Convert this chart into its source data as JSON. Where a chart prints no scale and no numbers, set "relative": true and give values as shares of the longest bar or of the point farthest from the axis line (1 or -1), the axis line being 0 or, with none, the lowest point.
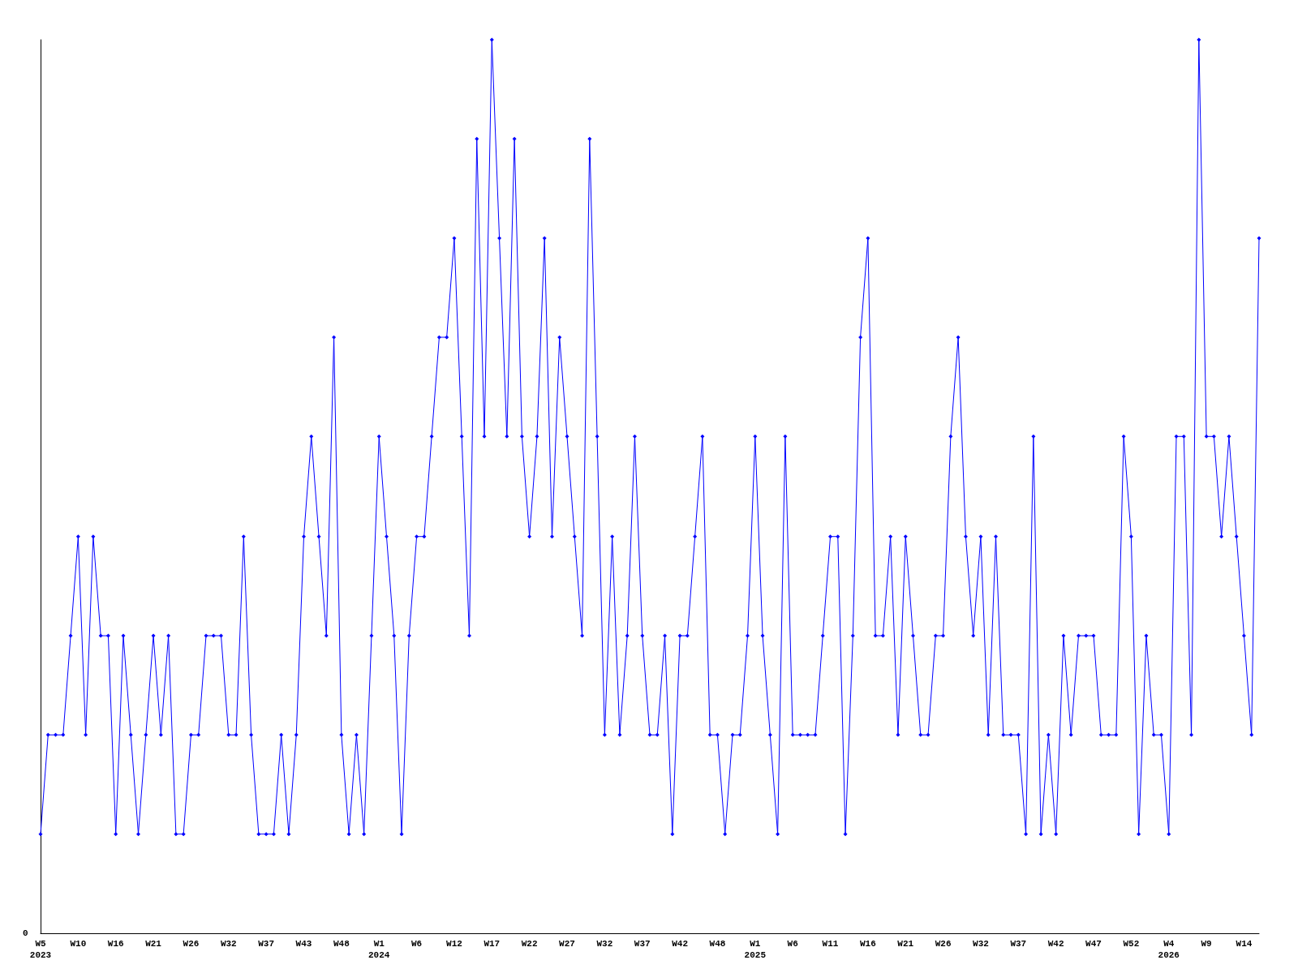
{
  "chart_data": {
    "type": "line",
    "relative": true,
    "color": "#0000ff",
    "marker": "diamond",
    "line_style": "solid",
    "grid": false,
    "annotations": [
      "0"
    ],
    "categories": [
      "W5\n2023",
      null,
      null,
      null,
      null,
      "W10",
      null,
      null,
      null,
      null,
      "W16",
      null,
      null,
      null,
      null,
      "W21",
      null,
      null,
      null,
      null,
      "W26",
      null,
      null,
      null,
      null,
      "W32",
      null,
      null,
      null,
      null,
      "W37",
      null,
      null,
      null,
      null,
      "W43",
      null,
      null,
      null,
      null,
      "W48",
      null,
      null,
      null,
      null,
      "W1\n2024",
      null,
      null,
      null,
      null,
      "W6",
      null,
      null,
      null,
      null,
      "W12",
      null,
      null,
      null,
      null,
      "W17",
      null,
      null,
      null,
      null,
      "W22",
      null,
      null,
      null,
      null,
      "W27",
      null,
      null,
      null,
      null,
      "W32",
      null,
      null,
      null,
      null,
      "W37",
      null,
      null,
      null,
      null,
      "W42",
      null,
      null,
      null,
      null,
      "W48",
      null,
      null,
      null,
      null,
      "W1\n2025",
      null,
      null,
      null,
      null,
      "W6",
      null,
      null,
      null,
      null,
      "W11",
      null,
      null,
      null,
      null,
      "W16",
      null,
      null,
      null,
      null,
      "W21",
      null,
      null,
      null,
      null,
      "W26",
      null,
      null,
      null,
      null,
      "W32",
      null,
      null,
      null,
      null,
      "W37",
      null,
      null,
      null,
      null,
      "W42",
      null,
      null,
      null,
      null,
      "W47",
      null,
      null,
      null,
      null,
      "W52",
      null,
      null,
      null,
      null,
      "W4\n2026",
      null,
      null,
      null,
      null,
      "W9",
      null,
      null,
      null,
      null,
      "W14",
      null,
      null
    ],
    "values": [
      0.111,
      0.222,
      0.222,
      0.222,
      0.333,
      0.444,
      0.222,
      0.444,
      0.333,
      0.333,
      0.111,
      0.333,
      0.222,
      0.111,
      0.222,
      0.333,
      0.222,
      0.333,
      0.111,
      0.111,
      0.222,
      0.222,
      0.333,
      0.333,
      0.333,
      0.222,
      0.222,
      0.444,
      0.222,
      0.111,
      0.111,
      0.111,
      0.222,
      0.111,
      0.222,
      0.444,
      0.556,
      0.444,
      0.333,
      0.667,
      0.222,
      0.111,
      0.222,
      0.111,
      0.333,
      0.556,
      0.444,
      0.333,
      0.111,
      0.333,
      0.444,
      0.444,
      0.556,
      0.667,
      0.667,
      0.778,
      0.556,
      0.333,
      0.889,
      0.556,
      1,
      0.778,
      0.556,
      0.889,
      0.556,
      0.444,
      0.556,
      0.778,
      0.444,
      0.667,
      0.556,
      0.444,
      0.333,
      0.889,
      0.556,
      0.222,
      0.444,
      0.222,
      0.333,
      0.556,
      0.333,
      0.222,
      0.222,
      0.333,
      0.111,
      0.333,
      0.333,
      0.444,
      0.556,
      0.222,
      0.222,
      0.111,
      0.222,
      0.222,
      0.333,
      0.556,
      0.333,
      0.222,
      0.111,
      0.556,
      0.222,
      0.222,
      0.222,
      0.222,
      0.333,
      0.444,
      0.444,
      0.111,
      0.333,
      0.667,
      0.778,
      0.333,
      0.333,
      0.444,
      0.222,
      0.444,
      0.333,
      0.222,
      0.222,
      0.333,
      0.333,
      0.556,
      0.667,
      0.444,
      0.333,
      0.444,
      0.222,
      0.444,
      0.222,
      0.222,
      0.222,
      0.111,
      0.556,
      0.111,
      0.222,
      0.111,
      0.333,
      0.222,
      0.333,
      0.333,
      0.333,
      0.222,
      0.222,
      0.222,
      0.556,
      0.444,
      0.111,
      0.333,
      0.222,
      0.222,
      0.111,
      0.556,
      0.556,
      0.222,
      1,
      0.556,
      0.556,
      0.444,
      0.556,
      0.444,
      0.333,
      0.222,
      0.778
    ]
  }
}
